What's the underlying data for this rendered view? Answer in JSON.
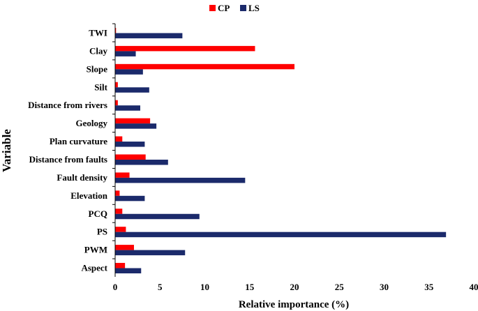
{
  "chart_data": {
    "type": "bar",
    "orientation": "horizontal",
    "categories": [
      "TWI",
      "Clay",
      "Slope",
      "Silt",
      "Distance from rivers",
      "Geology",
      "Plan curvature",
      "Distance from faults",
      "Fault density",
      "Elevation",
      "PCQ",
      "PS",
      "PWM",
      "Aspect"
    ],
    "series": [
      {
        "name": "CP",
        "color": "#ff0000",
        "values": [
          0.1,
          15.6,
          20.0,
          0.3,
          0.3,
          3.9,
          0.8,
          3.4,
          1.6,
          0.5,
          0.8,
          1.2,
          2.1,
          1.1
        ]
      },
      {
        "name": "LS",
        "color": "#1b2a6b",
        "values": [
          7.5,
          2.3,
          3.1,
          3.8,
          2.8,
          4.6,
          3.3,
          5.9,
          14.5,
          3.3,
          9.4,
          36.9,
          7.8,
          2.9
        ]
      }
    ],
    "xlabel": "Relative importance (%)",
    "ylabel": "Variable",
    "xlim": [
      0,
      40
    ],
    "xticks": [
      "0",
      "5",
      "10",
      "15",
      "20",
      "25",
      "30",
      "35",
      "40"
    ],
    "grid": false,
    "legend_position": "top-center"
  }
}
